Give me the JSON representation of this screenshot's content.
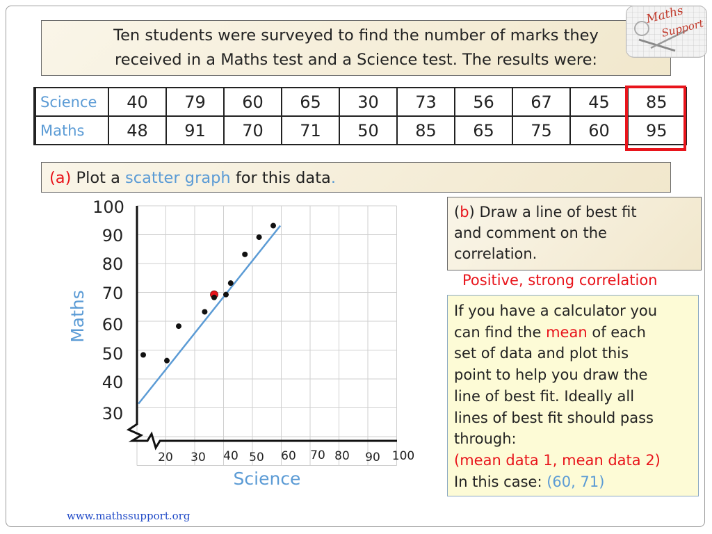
{
  "intro": {
    "line1": "Ten students were surveyed to find the number of marks they",
    "line2": "received in a Maths test and a Science test. The results were:"
  },
  "logo": {
    "text1": "Maths",
    "text2": "Support"
  },
  "table": {
    "rows": [
      {
        "label": "Science",
        "values": [
          "40",
          "79",
          "60",
          "65",
          "30",
          "73",
          "56",
          "67",
          "45",
          "85"
        ]
      },
      {
        "label": "Maths",
        "values": [
          "48",
          "91",
          "70",
          "71",
          "50",
          "85",
          "65",
          "75",
          "60",
          "95"
        ]
      }
    ]
  },
  "part_a": {
    "letter": "(a)",
    "t1": "Plot a",
    "t2": "scatter graph",
    "t3": "for this data",
    "t4": "."
  },
  "part_b": {
    "open": "(",
    "letter": "b",
    "close": ")",
    "t1": "Draw a line of best fit",
    "line2": "and comment on the",
    "line3": "correlation."
  },
  "answer": "Positive, strong correlation",
  "tip": {
    "l1": "If you have a calculator you",
    "l2a": "can find the",
    "l2b": "mean",
    "l2c": "of each",
    "l3": "set of data and plot this",
    "l4": "point to help you draw the",
    "l5": "line of best fit. Ideally all",
    "l6": "lines of best fit should pass",
    "l7": "through:",
    "l8": "(mean data 1, mean data 2)",
    "l9a": "In this case:",
    "l9b": "(60, 71)"
  },
  "footer": {
    "url": "www.mathssupport.org"
  },
  "chart_data": {
    "type": "scatter",
    "title": "",
    "xlabel": "Science",
    "ylabel": "Maths",
    "x_ticks": [
      "20",
      "30",
      "40",
      "50",
      "60",
      "70",
      "80",
      "90",
      "100"
    ],
    "y_ticks": [
      "100",
      "90",
      "80",
      "70",
      "60",
      "50",
      "40",
      "30"
    ],
    "xlim": [
      20,
      100
    ],
    "ylim": [
      30,
      100
    ],
    "grid": true,
    "axis_breaks": true,
    "points": [
      {
        "x": 40,
        "y": 48
      },
      {
        "x": 79,
        "y": 91
      },
      {
        "x": 60,
        "y": 70
      },
      {
        "x": 65,
        "y": 71
      },
      {
        "x": 30,
        "y": 50
      },
      {
        "x": 73,
        "y": 85
      },
      {
        "x": 56,
        "y": 65
      },
      {
        "x": 67,
        "y": 75
      },
      {
        "x": 45,
        "y": 60
      },
      {
        "x": 85,
        "y": 95
      }
    ],
    "mean_point": {
      "x": 60,
      "y": 71,
      "color": "#e8141b"
    },
    "best_fit_line": {
      "from": {
        "x": 28,
        "y": 33
      },
      "to": {
        "x": 88,
        "y": 95
      },
      "color": "#5b9bd5"
    },
    "point_color": "#111111"
  },
  "colors": {
    "accent_blue": "#5b9bd5",
    "accent_red": "#e8141b",
    "parchment": "#f7f0dc",
    "tip_bg": "#fdfbd6"
  }
}
